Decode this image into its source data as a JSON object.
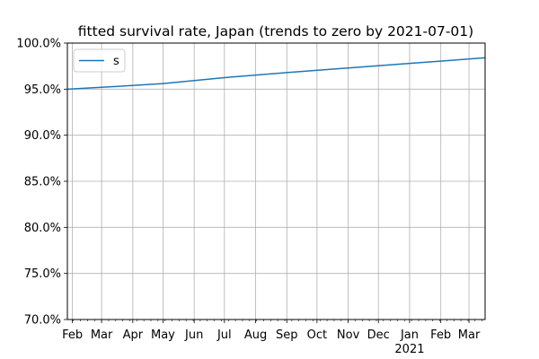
{
  "chart_data": {
    "type": "line",
    "title": "fitted survival rate, Japan (trends to zero by 2021-07-01)",
    "xlabel": "",
    "ylabel": "",
    "x_range": [
      "2020-01-27",
      "2021-03-17"
    ],
    "ylim": [
      0.7,
      1.0
    ],
    "y_ticks": [
      0.7,
      0.75,
      0.8,
      0.85,
      0.9,
      0.95,
      1.0
    ],
    "y_tick_labels": [
      "70.0%",
      "75.0%",
      "80.0%",
      "85.0%",
      "90.0%",
      "95.0%",
      "100.0%"
    ],
    "x_ticks": [
      {
        "date": "2020-02-01",
        "label": "Feb",
        "sublabel": ""
      },
      {
        "date": "2020-03-01",
        "label": "Mar",
        "sublabel": ""
      },
      {
        "date": "2020-04-01",
        "label": "Apr",
        "sublabel": ""
      },
      {
        "date": "2020-05-01",
        "label": "May",
        "sublabel": ""
      },
      {
        "date": "2020-06-01",
        "label": "Jun",
        "sublabel": ""
      },
      {
        "date": "2020-07-01",
        "label": "Jul",
        "sublabel": ""
      },
      {
        "date": "2020-08-01",
        "label": "Aug",
        "sublabel": ""
      },
      {
        "date": "2020-09-01",
        "label": "Sep",
        "sublabel": ""
      },
      {
        "date": "2020-10-01",
        "label": "Oct",
        "sublabel": ""
      },
      {
        "date": "2020-11-01",
        "label": "Nov",
        "sublabel": ""
      },
      {
        "date": "2020-12-01",
        "label": "Dec",
        "sublabel": ""
      },
      {
        "date": "2021-01-01",
        "label": "Jan",
        "sublabel": "2021"
      },
      {
        "date": "2021-02-01",
        "label": "Feb",
        "sublabel": ""
      },
      {
        "date": "2021-03-01",
        "label": "Mar",
        "sublabel": ""
      }
    ],
    "minor_ticks": "weekly (Sundays)",
    "grid": true,
    "legend": {
      "position": "top-left"
    },
    "series": [
      {
        "name": "s",
        "color": "#1f77b4",
        "x": [
          "2020-01-27",
          "2020-03-01",
          "2020-05-01",
          "2020-07-01",
          "2020-09-01",
          "2020-11-01",
          "2021-01-01",
          "2021-03-17"
        ],
        "y": [
          0.95,
          0.952,
          0.956,
          0.9625,
          0.968,
          0.973,
          0.978,
          0.984
        ]
      }
    ]
  }
}
